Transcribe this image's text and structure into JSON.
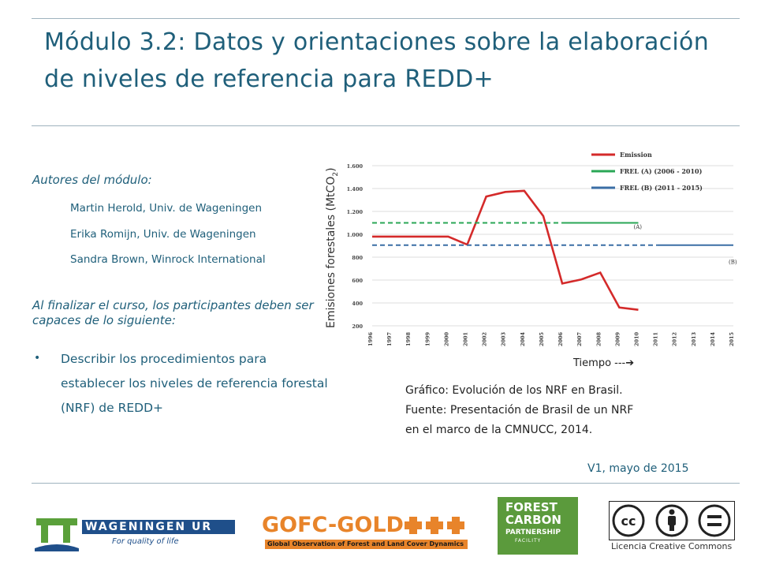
{
  "title": "Módulo 3.2: Datos y orientaciones sobre la elaboración de niveles de referencia para REDD+",
  "authors_heading": "Autores del módulo:",
  "authors": [
    "Martin Herold, Univ. de Wageningen",
    "Erika Romijn, Univ. de Wageningen",
    "Sandra Brown, Winrock International"
  ],
  "objectives_heading": "Al finalizar el curso, los participantes deben ser capaces de lo siguiente:",
  "objectives": [
    "Describir los procedimientos para establecer los niveles de referencia forestal (NRF) de REDD+"
  ],
  "chart_data": {
    "type": "line",
    "title": "",
    "xlabel": "Tiempo ---",
    "ylabel": "Emisiones forestales (MtCO",
    "ylabel_sub": "2",
    "ylabel_close": ")",
    "ylim": [
      200,
      1600
    ],
    "yticks": [
      "200",
      "400",
      "600",
      "800",
      "1.000",
      "1.200",
      "1.400",
      "1.600"
    ],
    "ytick_values": [
      200,
      400,
      600,
      800,
      1000,
      1200,
      1400,
      1600
    ],
    "categories": [
      "1996",
      "1997",
      "1998",
      "1999",
      "2000",
      "2001",
      "2002",
      "2003",
      "2004",
      "2005",
      "2006",
      "2007",
      "2008",
      "2009",
      "2010",
      "2011",
      "2012",
      "2013",
      "2014",
      "2015"
    ],
    "grid": true,
    "legend_position": "top-right",
    "series": [
      {
        "name": "Emission",
        "color": "#d42a2a",
        "style": "solid",
        "values": [
          980,
          980,
          980,
          980,
          980,
          910,
          1330,
          1370,
          1380,
          1160,
          570,
          605,
          665,
          360,
          340,
          null,
          null,
          null,
          null,
          null
        ]
      },
      {
        "name": "FREL  (A) (2006 - 2010)",
        "color": "#2aa756",
        "style": "dashed-then-solid",
        "values": [
          1100,
          1100,
          1100,
          1100,
          1100,
          1100,
          1100,
          1100,
          1100,
          1100,
          1100,
          1100,
          1100,
          1100,
          1100,
          null,
          null,
          null,
          null,
          null
        ]
      },
      {
        "name": "FREL   (B) (2011 - 2015)",
        "color": "#3a6ea5",
        "style": "dashed-then-solid",
        "values": [
          905,
          905,
          905,
          905,
          905,
          905,
          905,
          905,
          905,
          905,
          905,
          905,
          905,
          905,
          905,
          905,
          905,
          905,
          905,
          905
        ]
      }
    ],
    "annotations": [
      {
        "text": "(A)",
        "x": "2010",
        "y": 1050
      },
      {
        "text": "(B)",
        "x": "2015",
        "y": 740
      }
    ]
  },
  "caption_lines": [
    "Gráfico: Evolución de los NRF en Brasil.",
    "Fuente: Presentación de Brasil de un NRF",
    "en el marco de la CMNUCC, 2014."
  ],
  "version": "V1, mayo de 2015",
  "logos": {
    "wageningen": {
      "name": "WAGENINGEN UR",
      "tagline": "For quality of life"
    },
    "gofc": {
      "name": "GOFC-GOLD",
      "tagline": "Global Observation of Forest and Land Cover Dynamics"
    },
    "fcpf": {
      "lines": [
        "FOREST",
        "CARBON",
        "PARTNERSHIP",
        "FACILITY"
      ]
    },
    "cc": {
      "label": "Licencia Creative Commons"
    }
  },
  "colors": {
    "title": "#1f5f7a",
    "emission": "#d42a2a",
    "frel_a": "#2aa756",
    "frel_b": "#3a6ea5",
    "fcpf_green": "#5b9a3c",
    "gofc_orange": "#e8842a"
  }
}
